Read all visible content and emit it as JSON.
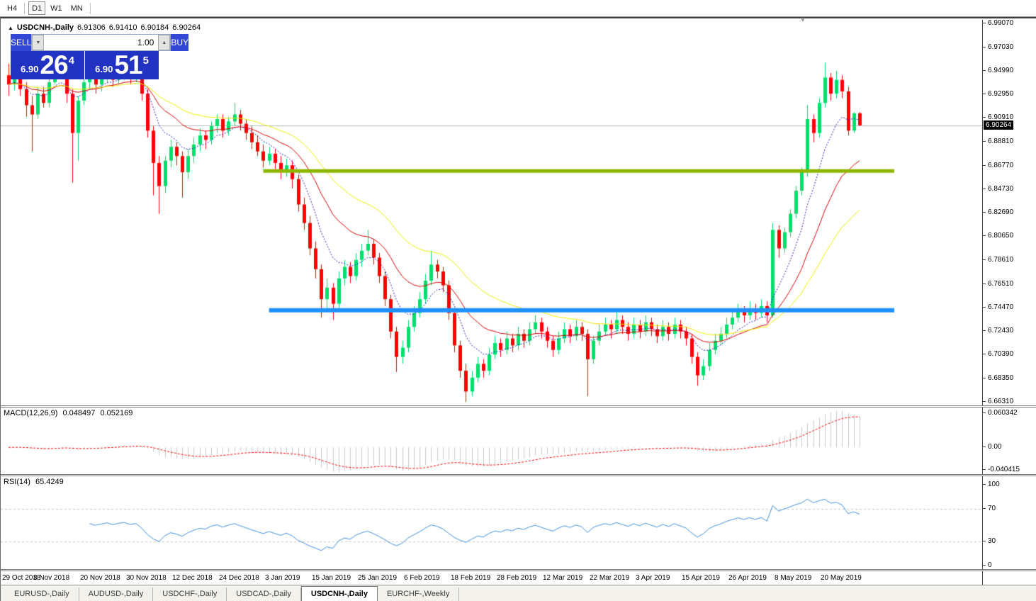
{
  "toolbar": {
    "buttons": [
      {
        "label": "H4",
        "active": false
      },
      {
        "label": "D1",
        "active": true
      },
      {
        "label": "W1",
        "active": false
      },
      {
        "label": "MN",
        "active": false
      }
    ]
  },
  "chart_title": {
    "collapse_icon": "▲",
    "symbol": "USDCNH-,Daily",
    "open": "6.91306",
    "high": "6.91410",
    "low": "6.90184",
    "close": "6.90264"
  },
  "trade_panel": {
    "sell_label": "SELL",
    "buy_label": "BUY",
    "volume": "1.00",
    "spin_down_icon": "▼",
    "spin_up_icon": "▲",
    "sell_quote": {
      "prefix": "6.90",
      "big": "26",
      "sup": "4"
    },
    "buy_quote": {
      "prefix": "6.90",
      "big": "51",
      "sup": "5"
    }
  },
  "price_axis": {
    "ticks": [
      "6.99070",
      "6.97030",
      "6.94990",
      "6.92950",
      "6.90910",
      "6.88810",
      "6.86770",
      "6.84730",
      "6.82690",
      "6.80650",
      "6.78610",
      "6.76510",
      "6.74470",
      "6.72430",
      "6.70390",
      "6.68350",
      "6.66310"
    ],
    "current_label": "6.90264"
  },
  "date_axis": {
    "labels": [
      "29 Oct 2018",
      "8 Nov 2018",
      "20 Nov 2018",
      "30 Nov 2018",
      "12 Dec 2018",
      "24 Dec 2018",
      "3 Jan 2019",
      "15 Jan 2019",
      "25 Jan 2019",
      "6 Feb 2019",
      "18 Feb 2019",
      "28 Feb 2019",
      "12 Mar 2019",
      "22 Mar 2019",
      "3 Apr 2019",
      "15 Apr 2019",
      "26 Apr 2019",
      "8 May 2019",
      "20 May 2019"
    ]
  },
  "panes": {
    "macd": {
      "label": "MACD(12,26,9)",
      "value1": "0.048497",
      "value2": "0.052169",
      "axis": [
        "0.060342",
        "0.00",
        "-0.040415"
      ]
    },
    "rsi": {
      "label": "RSI(14)",
      "value": "65.4249",
      "axis": [
        "100",
        "70",
        "30",
        "0"
      ]
    }
  },
  "tabs": [
    {
      "label": "EURUSD-,Daily",
      "active": false
    },
    {
      "label": "AUDUSD-,Daily",
      "active": false
    },
    {
      "label": "USDCHF-,Daily",
      "active": false
    },
    {
      "label": "USDCAD-,Daily",
      "active": false
    },
    {
      "label": "USDCNH-,Daily",
      "active": true
    },
    {
      "label": "EURCHF-,Weekly",
      "active": false
    }
  ],
  "colors": {
    "up_candle": "#00df6c",
    "down_candle": "#ff0000",
    "ma_fast": "#2222cc",
    "ma_mid": "#dd0000",
    "ma_slow": "#ededed00",
    "hline_resistance": "#8db600",
    "hline_support": "#1e90ff",
    "current_price_line": "#b8b8b8",
    "macd_histogram": "#c8c8c8",
    "macd_signal": "#ff0000",
    "rsi_line": "#3e8ede",
    "panel_blue": "#2232c2"
  },
  "chart_data": [
    {
      "type": "candlestick",
      "title": "USDCNH-,Daily",
      "ylim": [
        6.66,
        6.994
      ],
      "y_ticks": [
        6.9907,
        6.9703,
        6.9499,
        6.9295,
        6.9091,
        6.8881,
        6.8677,
        6.8473,
        6.8269,
        6.8065,
        6.7861,
        6.7651,
        6.7447,
        6.7243,
        6.7039,
        6.6835,
        6.6631
      ],
      "x_label_every": 8,
      "current_price": 6.90264,
      "moving_averages": [
        {
          "period": 8,
          "color": "#2222cc",
          "dash": [
            2,
            2
          ]
        },
        {
          "period": 18,
          "color": "#dd0000",
          "dash": []
        },
        {
          "period": 34,
          "color": "#eded00",
          "dash": []
        }
      ],
      "hlines": [
        {
          "price": 6.863,
          "color": "#8db600",
          "width": 5,
          "from_bar": 44,
          "to_bar": 153
        },
        {
          "price": 6.7425,
          "color": "#1e90ff",
          "width": 6,
          "from_bar": 45,
          "to_bar": 153
        }
      ],
      "ohlc": [
        [
          6.946,
          6.956,
          6.928,
          6.938
        ],
        [
          6.938,
          6.95,
          6.933,
          6.946
        ],
        [
          6.946,
          6.95,
          6.928,
          6.934
        ],
        [
          6.934,
          6.94,
          6.91,
          6.92
        ],
        [
          6.92,
          6.928,
          6.88,
          6.912
        ],
        [
          6.912,
          6.936,
          6.908,
          6.93
        ],
        [
          6.93,
          6.936,
          6.918,
          6.922
        ],
        [
          6.922,
          6.946,
          6.918,
          6.94
        ],
        [
          6.94,
          6.962,
          6.938,
          6.958
        ],
        [
          6.958,
          6.962,
          6.944,
          6.95
        ],
        [
          6.95,
          6.954,
          6.922,
          6.93
        ],
        [
          6.93,
          6.934,
          6.853,
          6.896
        ],
        [
          6.896,
          6.928,
          6.872,
          6.924
        ],
        [
          6.924,
          6.946,
          6.92,
          6.94
        ],
        [
          6.94,
          6.95,
          6.934,
          6.946
        ],
        [
          6.946,
          6.95,
          6.93,
          6.938
        ],
        [
          6.938,
          6.948,
          6.932,
          6.944
        ],
        [
          6.944,
          6.956,
          6.94,
          6.95
        ],
        [
          6.95,
          6.954,
          6.936,
          6.942
        ],
        [
          6.942,
          6.952,
          6.938,
          6.948
        ],
        [
          6.948,
          6.958,
          6.942,
          6.952
        ],
        [
          6.952,
          6.956,
          6.938,
          6.944
        ],
        [
          6.944,
          6.954,
          6.94,
          6.948
        ],
        [
          6.948,
          6.95,
          6.924,
          6.93
        ],
        [
          6.93,
          6.934,
          6.892,
          6.898
        ],
        [
          6.898,
          6.902,
          6.842,
          6.87
        ],
        [
          6.87,
          6.876,
          6.826,
          6.85
        ],
        [
          6.85,
          6.876,
          6.844,
          6.872
        ],
        [
          6.872,
          6.89,
          6.866,
          6.884
        ],
        [
          6.884,
          6.888,
          6.868,
          6.876
        ],
        [
          6.876,
          6.88,
          6.84,
          6.862
        ],
        [
          6.862,
          6.882,
          6.856,
          6.876
        ],
        [
          6.876,
          6.892,
          6.87,
          6.886
        ],
        [
          6.886,
          6.9,
          6.88,
          6.894
        ],
        [
          6.894,
          6.898,
          6.882,
          6.89
        ],
        [
          6.89,
          6.906,
          6.886,
          6.902
        ],
        [
          6.902,
          6.912,
          6.896,
          6.908
        ],
        [
          6.908,
          6.912,
          6.892,
          6.898
        ],
        [
          6.898,
          6.91,
          6.894,
          6.906
        ],
        [
          6.906,
          6.922,
          6.902,
          6.912
        ],
        [
          6.912,
          6.916,
          6.898,
          6.904
        ],
        [
          6.904,
          6.908,
          6.89,
          6.896
        ],
        [
          6.896,
          6.902,
          6.882,
          6.888
        ],
        [
          6.888,
          6.894,
          6.876,
          6.88
        ],
        [
          6.88,
          6.886,
          6.866,
          6.872
        ],
        [
          6.872,
          6.884,
          6.868,
          6.878
        ],
        [
          6.878,
          6.882,
          6.864,
          6.87
        ],
        [
          6.87,
          6.876,
          6.856,
          6.862
        ],
        [
          6.862,
          6.874,
          6.858,
          6.868
        ],
        [
          6.868,
          6.872,
          6.848,
          6.856
        ],
        [
          6.856,
          6.86,
          6.828,
          6.834
        ],
        [
          6.834,
          6.84,
          6.812,
          6.818
        ],
        [
          6.818,
          6.824,
          6.79,
          6.796
        ],
        [
          6.796,
          6.802,
          6.77,
          6.778
        ],
        [
          6.778,
          6.782,
          6.736,
          6.752
        ],
        [
          6.752,
          6.77,
          6.744,
          6.762
        ],
        [
          6.762,
          6.766,
          6.734,
          6.748
        ],
        [
          6.748,
          6.776,
          6.744,
          6.77
        ],
        [
          6.77,
          6.786,
          6.764,
          6.78
        ],
        [
          6.78,
          6.784,
          6.766,
          6.772
        ],
        [
          6.772,
          6.792,
          6.768,
          6.786
        ],
        [
          6.786,
          6.8,
          6.78,
          6.794
        ],
        [
          6.794,
          6.812,
          6.79,
          6.8
        ],
        [
          6.8,
          6.804,
          6.782,
          6.788
        ],
        [
          6.788,
          6.792,
          6.766,
          6.772
        ],
        [
          6.772,
          6.776,
          6.746,
          6.752
        ],
        [
          6.752,
          6.756,
          6.718,
          6.724
        ],
        [
          6.724,
          6.728,
          6.689,
          6.702
        ],
        [
          6.702,
          6.716,
          6.696,
          6.71
        ],
        [
          6.71,
          6.734,
          6.706,
          6.728
        ],
        [
          6.728,
          6.746,
          6.724,
          6.74
        ],
        [
          6.74,
          6.758,
          6.736,
          6.752
        ],
        [
          6.752,
          6.774,
          6.748,
          6.768
        ],
        [
          6.768,
          6.794,
          6.764,
          6.782
        ],
        [
          6.782,
          6.786,
          6.77,
          6.776
        ],
        [
          6.776,
          6.78,
          6.758,
          6.764
        ],
        [
          6.764,
          6.768,
          6.734,
          6.74
        ],
        [
          6.74,
          6.744,
          6.706,
          6.712
        ],
        [
          6.712,
          6.716,
          6.684,
          6.69
        ],
        [
          6.69,
          6.696,
          6.663,
          6.672
        ],
        [
          6.672,
          6.69,
          6.668,
          6.684
        ],
        [
          6.684,
          6.702,
          6.68,
          6.696
        ],
        [
          6.696,
          6.7,
          6.684,
          6.69
        ],
        [
          6.69,
          6.71,
          6.686,
          6.704
        ],
        [
          6.704,
          6.72,
          6.7,
          6.714
        ],
        [
          6.714,
          6.718,
          6.702,
          6.708
        ],
        [
          6.708,
          6.724,
          6.704,
          6.718
        ],
        [
          6.718,
          6.722,
          6.706,
          6.712
        ],
        [
          6.712,
          6.728,
          6.708,
          6.722
        ],
        [
          6.722,
          6.726,
          6.71,
          6.716
        ],
        [
          6.716,
          6.732,
          6.712,
          6.726
        ],
        [
          6.726,
          6.738,
          6.722,
          6.732
        ],
        [
          6.732,
          6.736,
          6.718,
          6.724
        ],
        [
          6.724,
          6.728,
          6.71,
          6.716
        ],
        [
          6.716,
          6.72,
          6.702,
          6.708
        ],
        [
          6.708,
          6.724,
          6.704,
          6.718
        ],
        [
          6.718,
          6.732,
          6.714,
          6.726
        ],
        [
          6.726,
          6.73,
          6.714,
          6.72
        ],
        [
          6.72,
          6.734,
          6.716,
          6.728
        ],
        [
          6.728,
          6.732,
          6.716,
          6.722
        ],
        [
          6.722,
          6.726,
          6.668,
          6.7
        ],
        [
          6.7,
          6.72,
          6.696,
          6.716
        ],
        [
          6.716,
          6.73,
          6.712,
          6.724
        ],
        [
          6.724,
          6.736,
          6.72,
          6.73
        ],
        [
          6.73,
          6.734,
          6.718,
          6.726
        ],
        [
          6.726,
          6.742,
          6.722,
          6.734
        ],
        [
          6.734,
          6.738,
          6.722,
          6.728
        ],
        [
          6.728,
          6.732,
          6.716,
          6.722
        ],
        [
          6.722,
          6.736,
          6.718,
          6.73
        ],
        [
          6.73,
          6.734,
          6.718,
          6.724
        ],
        [
          6.724,
          6.738,
          6.72,
          6.732
        ],
        [
          6.732,
          6.736,
          6.72,
          6.726
        ],
        [
          6.726,
          6.73,
          6.714,
          6.72
        ],
        [
          6.72,
          6.734,
          6.716,
          6.728
        ],
        [
          6.728,
          6.732,
          6.716,
          6.722
        ],
        [
          6.722,
          6.736,
          6.718,
          6.73
        ],
        [
          6.73,
          6.734,
          6.718,
          6.724
        ],
        [
          6.724,
          6.728,
          6.712,
          6.718
        ],
        [
          6.718,
          6.722,
          6.696,
          6.702
        ],
        [
          6.702,
          6.706,
          6.677,
          6.686
        ],
        [
          6.686,
          6.7,
          6.682,
          6.694
        ],
        [
          6.694,
          6.714,
          6.69,
          6.708
        ],
        [
          6.708,
          6.722,
          6.704,
          6.716
        ],
        [
          6.716,
          6.728,
          6.712,
          6.722
        ],
        [
          6.722,
          6.736,
          6.718,
          6.73
        ],
        [
          6.73,
          6.742,
          6.726,
          6.736
        ],
        [
          6.736,
          6.748,
          6.732,
          6.742
        ],
        [
          6.742,
          6.746,
          6.732,
          6.738
        ],
        [
          6.738,
          6.75,
          6.734,
          6.744
        ],
        [
          6.744,
          6.748,
          6.734,
          6.74
        ],
        [
          6.74,
          6.752,
          6.736,
          6.746
        ],
        [
          6.746,
          6.75,
          6.732,
          6.738
        ],
        [
          6.738,
          6.818,
          6.736,
          6.812
        ],
        [
          6.812,
          6.816,
          6.788,
          6.796
        ],
        [
          6.796,
          6.814,
          6.792,
          6.81
        ],
        [
          6.81,
          6.83,
          6.806,
          6.826
        ],
        [
          6.826,
          6.85,
          6.822,
          6.846
        ],
        [
          6.846,
          6.866,
          6.842,
          6.862
        ],
        [
          6.862,
          6.92,
          6.858,
          6.908
        ],
        [
          6.908,
          6.912,
          6.888,
          6.896
        ],
        [
          6.896,
          6.926,
          6.892,
          6.922
        ],
        [
          6.922,
          6.957,
          6.918,
          6.944
        ],
        [
          6.944,
          6.948,
          6.924,
          6.93
        ],
        [
          6.93,
          6.95,
          6.926,
          6.942
        ],
        [
          6.942,
          6.946,
          6.926,
          6.932
        ],
        [
          6.932,
          6.936,
          6.894,
          6.898
        ],
        [
          6.898,
          6.914,
          6.896,
          6.913
        ],
        [
          6.91306,
          6.9141,
          6.90184,
          6.90264
        ]
      ]
    },
    {
      "type": "macd_histogram",
      "params": [
        12,
        26,
        9
      ],
      "current_macd": 0.048497,
      "current_signal": 0.052169,
      "ylim": [
        -0.040415,
        0.060342
      ],
      "y_ticks": [
        0.060342,
        0.0,
        -0.040415
      ],
      "histogram_color": "#c8c8c8",
      "signal_color": "#ff0000"
    },
    {
      "type": "rsi",
      "period": 14,
      "current": 65.4249,
      "ylim": [
        0,
        100
      ],
      "levels": [
        70,
        30
      ],
      "y_ticks": [
        100,
        70,
        30,
        0
      ],
      "line_color": "#3e8ede",
      "level_color": "#c8c8c8"
    }
  ]
}
